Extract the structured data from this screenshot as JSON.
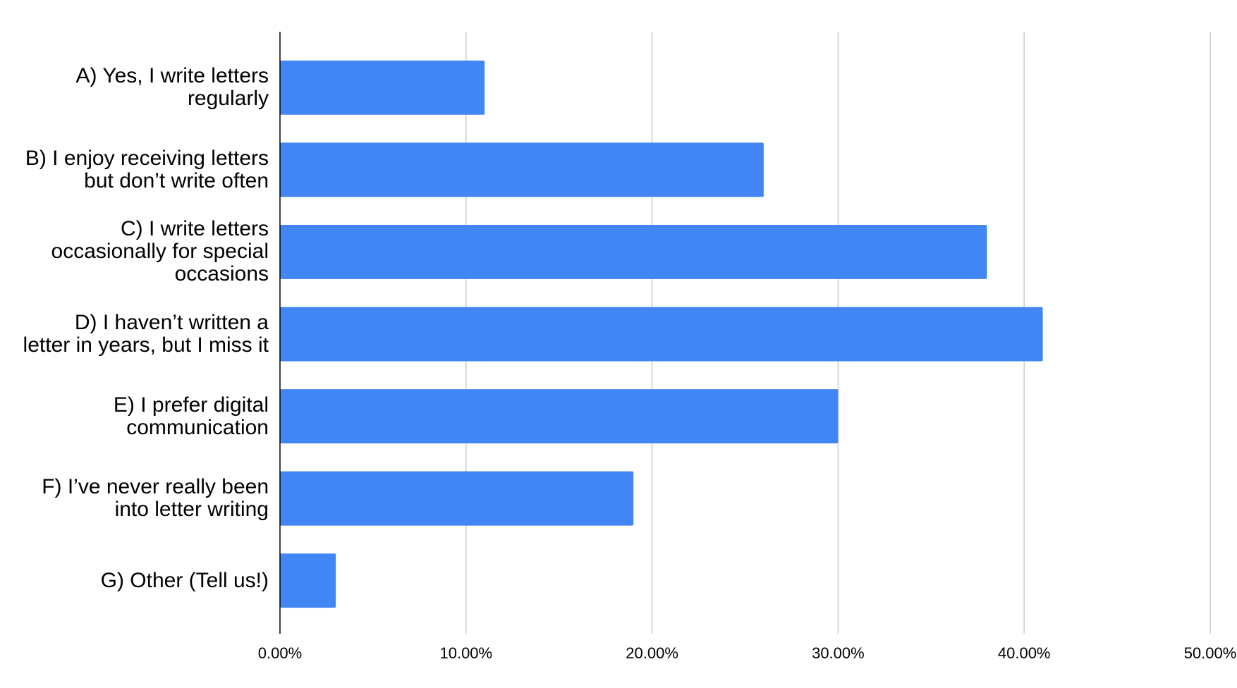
{
  "chart_data": {
    "type": "bar",
    "orientation": "horizontal",
    "categories": [
      "A) Yes, I write letters regularly",
      "B) I enjoy receiving letters but don’t write often",
      "C) I write letters occasionally for special occasions",
      "D) I haven’t written a letter in years, but I miss it",
      "E) I prefer digital communication",
      "F) I’ve never really been into letter writing",
      "G) Other (Tell us!)"
    ],
    "values": [
      11,
      26,
      38,
      41,
      30,
      19,
      3
    ],
    "color": "#4285f4",
    "xlim": [
      0,
      50
    ],
    "xticks": [
      {
        "value": 0,
        "label": "0.00%"
      },
      {
        "value": 10,
        "label": "10.00%"
      },
      {
        "value": 20,
        "label": "20.00%"
      },
      {
        "value": 30,
        "label": "30.00%"
      },
      {
        "value": 40,
        "label": "40.00%"
      },
      {
        "value": 50,
        "label": "50.00%"
      }
    ],
    "grid": true
  }
}
